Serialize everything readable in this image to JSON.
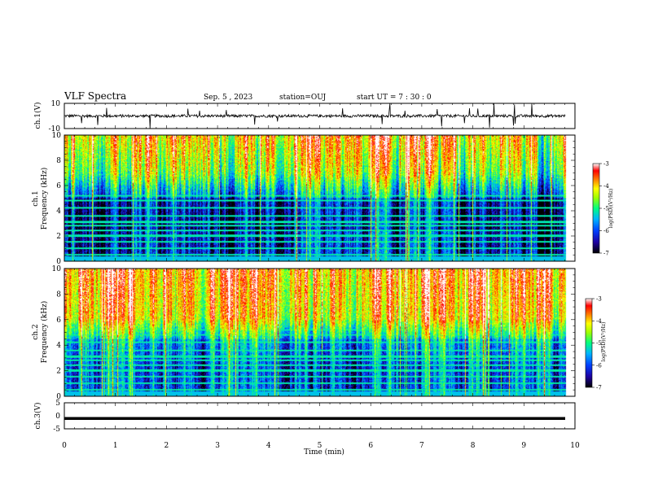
{
  "header": {
    "title": "VLF Spectra",
    "date": "Sep. 5 , 2023",
    "station": "station=OUJ",
    "start": "start UT = 7 : 30 : 0"
  },
  "chart_data": [
    {
      "type": "line",
      "panel": "ch1-waveform",
      "ylabel": "ch.1(V)",
      "ylim": [
        -10,
        10
      ],
      "yticks": [
        "10",
        "-10"
      ],
      "xlim": [
        0,
        10
      ],
      "line_color": "#000000",
      "note_series": "continuous noisy trace near 0 V with sparse spikes"
    },
    {
      "type": "heatmap",
      "panel": "ch1-spectrogram",
      "ylabel": [
        "ch.1",
        "Frequency (kHz)"
      ],
      "ylim": [
        0,
        10
      ],
      "yticks": [
        "0",
        "2",
        "4",
        "6",
        "8",
        "10"
      ],
      "xlim": [
        0,
        10
      ],
      "colorbar": {
        "label": "log(PSD)(V²/Hz)",
        "range": [
          -7,
          -3
        ],
        "ticks": [
          "-3",
          "-4",
          "-5",
          "-6",
          "-7"
        ]
      },
      "colormap": [
        "#000000",
        "#1e00a0",
        "#0040ff",
        "#00b4ff",
        "#00ff80",
        "#a0ff00",
        "#ffff00",
        "#ff8000",
        "#ff0000",
        "#ffffff"
      ]
    },
    {
      "type": "heatmap",
      "panel": "ch2-spectrogram",
      "ylabel": [
        "ch.2",
        "Frequency (kHz)"
      ],
      "ylim": [
        0,
        10
      ],
      "yticks": [
        "0",
        "2",
        "4",
        "6",
        "8",
        "10"
      ],
      "xlim": [
        0,
        10
      ],
      "colorbar": {
        "label": "log(PSD)(V²/Hz)",
        "range": [
          -7,
          -3
        ],
        "ticks": [
          "-3",
          "-4",
          "-5",
          "-6",
          "-7"
        ]
      },
      "colormap": [
        "#000000",
        "#1e00a0",
        "#0040ff",
        "#00b4ff",
        "#00ff80",
        "#a0ff00",
        "#ffff00",
        "#ff8000",
        "#ff0000",
        "#ffffff"
      ]
    },
    {
      "type": "line",
      "panel": "ch3-waveform",
      "ylabel": "ch.3(V)",
      "ylim": [
        -5,
        5
      ],
      "yticks": [
        "5",
        "0",
        "-5"
      ],
      "xlim": [
        0,
        10
      ],
      "values_constant": -1.0,
      "line_color": "#000000"
    }
  ],
  "xaxis": {
    "label": "Time (min)",
    "ticks": [
      "0",
      "1",
      "2",
      "3",
      "4",
      "5",
      "6",
      "7",
      "8",
      "9",
      "10"
    ]
  }
}
